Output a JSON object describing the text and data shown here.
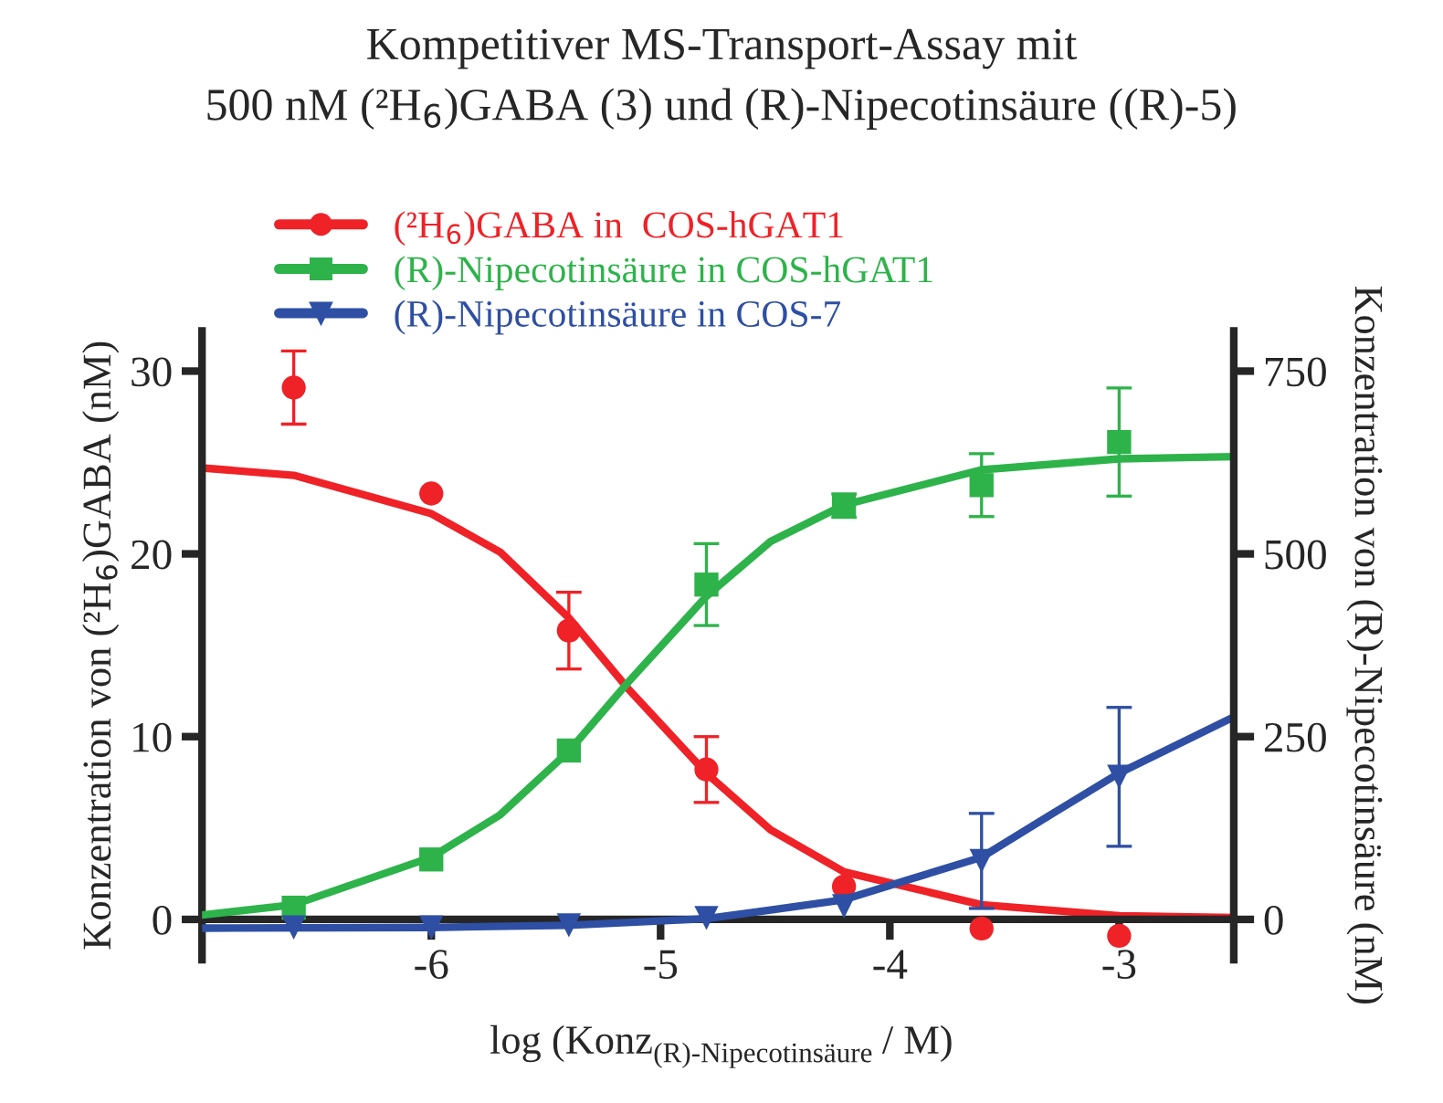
{
  "chart_data": {
    "type": "scatter",
    "title": "Kompetitiver MS-Transport-Assay mit\n500 nM (²H$_{6}$)GABA (3) und (R)-Nipecotinsäure ((R)-5)",
    "xlabel": "log (Konz$_{(R)-Nipecotinsäure}$ / M)",
    "ylabel": "Konzentration von (²H$_{6}$)GABA (nM)",
    "y2label": "Konzentration von (R)-Nipecotinsäure (nM)",
    "xlim": [
      -7,
      -2.5
    ],
    "xticks": [
      -6,
      -5,
      -4,
      -3
    ],
    "ylim": [
      -2.2,
      32.2
    ],
    "yticks": [
      0,
      10,
      20,
      30
    ],
    "y2lim": [
      -55,
      805
    ],
    "y2ticks": [
      0,
      250,
      500,
      750
    ],
    "grid": false,
    "legend": "top left",
    "series": [
      {
        "name": "(²H$_{6}$)GABA in  COS-hGAT1",
        "color": "#ee2227",
        "marker": "circle",
        "x": [
          -6.6,
          -6.0,
          -5.4,
          -4.8,
          -4.2,
          -3.6,
          -3.0
        ],
        "values": [
          29.1,
          23.3,
          15.8,
          8.2,
          1.8,
          -0.5,
          -0.9
        ],
        "errors": [
          2.0,
          null,
          2.1,
          1.8,
          null,
          null,
          null
        ]
      },
      {
        "name": "(R)-Nipecotinsäure in COS-hGAT1",
        "color": "#2db34a",
        "marker": "square",
        "axis": "y2",
        "x": [
          -6.6,
          -6.0,
          -5.4,
          -4.8,
          -4.2,
          -3.6,
          -3.0
        ],
        "values": [
          16,
          82,
          231,
          458,
          566,
          594,
          653
        ],
        "errors": [
          null,
          null,
          null,
          56,
          16,
          43,
          74
        ]
      },
      {
        "name": "(R)-Nipecotinsäure in COS-7",
        "color": "#2e4fa3",
        "marker": "triangle_down",
        "axis": "y2",
        "x": [
          -6.6,
          -6.0,
          -5.4,
          -4.8,
          -4.2,
          -3.6,
          -3.0
        ],
        "values": [
          -11,
          -11,
          -8,
          2,
          18,
          80,
          195
        ],
        "errors": [
          null,
          null,
          null,
          null,
          null,
          65,
          95
        ]
      },
      {
        "type": "line",
        "color": "#ee2227",
        "x": [
          -7.0,
          -6.6,
          -6.0,
          -5.7,
          -5.4,
          -5.14,
          -4.8,
          -4.52,
          -4.2,
          -3.6,
          -3.0,
          -2.5
        ],
        "values": [
          24.7,
          24.3,
          22.2,
          20.1,
          16.5,
          12.6,
          8.0,
          4.9,
          2.6,
          0.8,
          0.2,
          0.1
        ]
      },
      {
        "type": "line",
        "color": "#2db34a",
        "axis": "y2",
        "x": [
          -7.0,
          -6.6,
          -6.0,
          -5.7,
          -5.4,
          -5.14,
          -4.8,
          -4.52,
          -4.2,
          -3.6,
          -3.0,
          -2.5
        ],
        "values": [
          6,
          20,
          85,
          143,
          230,
          325,
          442,
          517,
          567,
          615,
          630,
          633
        ]
      },
      {
        "type": "line",
        "color": "#2e4fa3",
        "axis": "y2",
        "x": [
          -7.0,
          -6.0,
          -5.4,
          -4.8,
          -4.52,
          -4.2,
          -3.9,
          -3.6,
          -3.3,
          -3.0,
          -2.5
        ],
        "values": [
          -12,
          -11,
          -8,
          1,
          13,
          27,
          56,
          85,
          143,
          200,
          277
        ]
      }
    ]
  }
}
